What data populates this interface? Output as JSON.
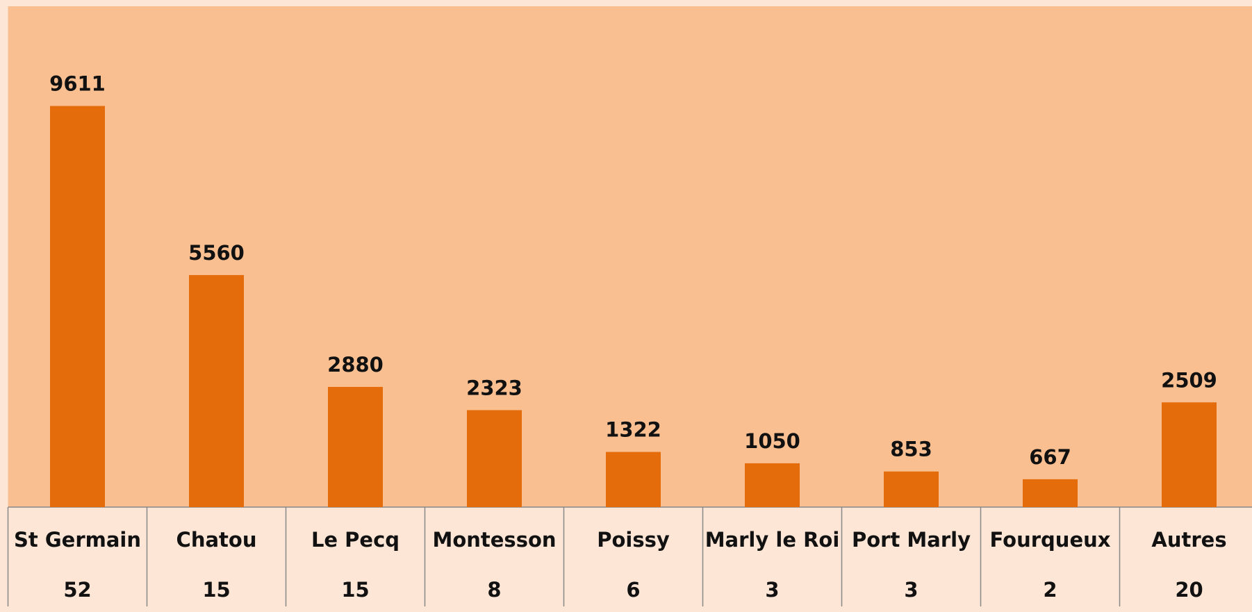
{
  "chart_data": {
    "type": "bar",
    "categories": [
      "St Germain",
      "Chatou",
      "Le Pecq",
      "Montesson",
      "Poissy",
      "Marly le Roi",
      "Port Marly",
      "Fourqueux",
      "Autres"
    ],
    "values": [
      9611,
      5560,
      2880,
      2323,
      1322,
      1050,
      853,
      667,
      2509
    ],
    "table_values": [
      52,
      15,
      15,
      8,
      6,
      3,
      3,
      2,
      20
    ],
    "color": "#e46c0a",
    "ylim": [
      0,
      12000
    ]
  }
}
